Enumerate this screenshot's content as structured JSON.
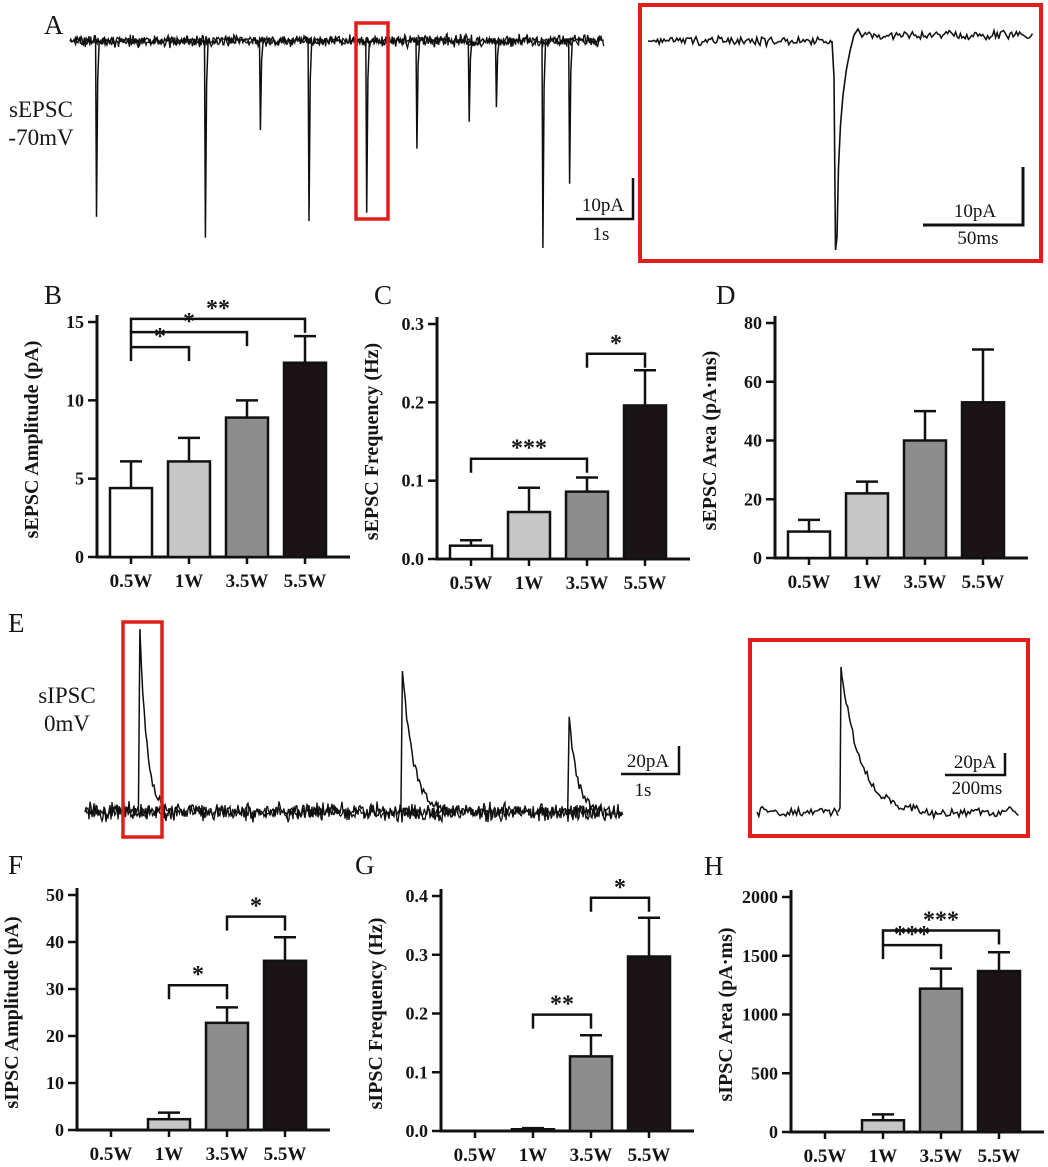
{
  "colors": {
    "trace": "#0f0f0f",
    "highlight_box": "#df1f1a",
    "bar_fills": [
      "#ffffff",
      "#c6c6c6",
      "#8d8d8d",
      "#1a1416"
    ],
    "axis": "#111111"
  },
  "panels": {
    "A": {
      "letter": "A",
      "label_line1": "sEPSC",
      "label_line2": "-70mV",
      "scale": {
        "vertical": "10pA",
        "horizontal": "1s"
      },
      "inset_scale": {
        "vertical": "10pA",
        "horizontal": "50ms"
      },
      "trace_type": "downward-events",
      "events": [
        {
          "x": 0.049,
          "a": 0.85
        },
        {
          "x": 0.253,
          "a": 0.95
        },
        {
          "x": 0.356,
          "a": 0.43
        },
        {
          "x": 0.447,
          "a": 0.87
        },
        {
          "x": 0.555,
          "a": 0.83
        },
        {
          "x": 0.649,
          "a": 0.52
        },
        {
          "x": 0.747,
          "a": 0.39
        },
        {
          "x": 0.798,
          "a": 0.32
        },
        {
          "x": 0.885,
          "a": 1.0
        },
        {
          "x": 0.935,
          "a": 0.69
        }
      ],
      "boxed_event_index": 4,
      "inset_event_x": 0.485
    },
    "E": {
      "letter": "E",
      "label_line1": "sIPSC",
      "label_line2": "0mV",
      "scale": {
        "vertical": "20pA",
        "horizontal": "1s"
      },
      "inset_scale": {
        "vertical": "20pA",
        "horizontal": "200ms"
      },
      "trace_type": "upward-events",
      "events": [
        {
          "x": 0.102,
          "a": 1.0
        },
        {
          "x": 0.59,
          "a": 0.77
        },
        {
          "x": 0.9,
          "a": 0.52
        }
      ],
      "boxed_event_index": 0,
      "inset_event_x": 0.31
    },
    "B": {
      "letter": "B"
    },
    "C": {
      "letter": "C"
    },
    "D": {
      "letter": "D"
    },
    "F": {
      "letter": "F"
    },
    "G": {
      "letter": "G"
    },
    "H": {
      "letter": "H"
    }
  },
  "chart_data": [
    {
      "panel": "B",
      "type": "bar",
      "ylabel": "sEPSC Amplitude (pA)",
      "categories": [
        "0.5W",
        "1W",
        "3.5W",
        "5.5W"
      ],
      "values": [
        4.4,
        6.1,
        8.9,
        12.4
      ],
      "errors": [
        1.7,
        1.5,
        1.1,
        1.7
      ],
      "ylim": [
        0,
        15
      ],
      "yticks": [
        0,
        5,
        10,
        15
      ],
      "ytick_labels": [
        "0",
        "5",
        "10",
        "15"
      ],
      "grid": false,
      "significance": [
        {
          "groups": [
            0,
            1
          ],
          "label": "*",
          "y": 13.4
        },
        {
          "groups": [
            0,
            2
          ],
          "label": "*",
          "y": 14.35
        },
        {
          "groups": [
            0,
            3
          ],
          "label": "**",
          "y": 15.2
        }
      ]
    },
    {
      "panel": "C",
      "type": "bar",
      "ylabel": "sEPSC Frequency (Hz)",
      "categories": [
        "0.5W",
        "1W",
        "3.5W",
        "5.5W"
      ],
      "values": [
        0.017,
        0.06,
        0.086,
        0.196
      ],
      "errors": [
        0.007,
        0.031,
        0.018,
        0.045
      ],
      "ylim": [
        0,
        0.3
      ],
      "yticks": [
        0,
        0.1,
        0.2,
        0.3
      ],
      "ytick_labels": [
        "0.0",
        "0.1",
        "0.2",
        "0.3"
      ],
      "grid": false,
      "significance": [
        {
          "groups": [
            0,
            2
          ],
          "label": "***",
          "y": 0.128
        },
        {
          "groups": [
            2,
            3
          ],
          "label": "*",
          "y": 0.262
        }
      ]
    },
    {
      "panel": "D",
      "type": "bar",
      "ylabel": "sEPSC Area (pA·ms)",
      "categories": [
        "0.5W",
        "1W",
        "3.5W",
        "5.5W"
      ],
      "values": [
        9,
        22,
        40,
        53
      ],
      "errors": [
        4,
        4,
        10,
        18
      ],
      "ylim": [
        0,
        80
      ],
      "yticks": [
        0,
        20,
        40,
        60,
        80
      ],
      "ytick_labels": [
        "0",
        "20",
        "40",
        "60",
        "80"
      ],
      "grid": false,
      "significance": []
    },
    {
      "panel": "F",
      "type": "bar",
      "ylabel": "sIPSC Amplitude (pA)",
      "categories": [
        "0.5W",
        "1W",
        "3.5W",
        "5.5W"
      ],
      "values": [
        0,
        2.3,
        22.8,
        36
      ],
      "errors": [
        0,
        1.4,
        3.3,
        5
      ],
      "ylim": [
        0,
        50
      ],
      "yticks": [
        0,
        10,
        20,
        30,
        40,
        50
      ],
      "ytick_labels": [
        "0",
        "10",
        "20",
        "30",
        "40",
        "50"
      ],
      "grid": false,
      "significance": [
        {
          "groups": [
            1,
            2
          ],
          "label": "*",
          "y": 30.8
        },
        {
          "groups": [
            2,
            3
          ],
          "label": "*",
          "y": 45.4
        }
      ]
    },
    {
      "panel": "G",
      "type": "bar",
      "ylabel": "sIPSC Frequency (Hz)",
      "categories": [
        "0.5W",
        "1W",
        "3.5W",
        "5.5W"
      ],
      "values": [
        0,
        0.003,
        0.127,
        0.297
      ],
      "errors": [
        0,
        0.002,
        0.036,
        0.066
      ],
      "ylim": [
        0,
        0.4
      ],
      "yticks": [
        0,
        0.1,
        0.2,
        0.3,
        0.4
      ],
      "ytick_labels": [
        "0.0",
        "0.1",
        "0.2",
        "0.3",
        "0.4"
      ],
      "grid": false,
      "significance": [
        {
          "groups": [
            1,
            2
          ],
          "label": "**",
          "y": 0.198
        },
        {
          "groups": [
            2,
            3
          ],
          "label": "*",
          "y": 0.397
        }
      ]
    },
    {
      "panel": "H",
      "type": "bar",
      "ylabel": "sIPSC Area (pA·ms)",
      "categories": [
        "0.5W",
        "1W",
        "3.5W",
        "5.5W"
      ],
      "values": [
        0,
        100,
        1220,
        1370
      ],
      "errors": [
        0,
        50,
        170,
        160
      ],
      "ylim": [
        0,
        2000
      ],
      "yticks": [
        0,
        500,
        1000,
        1500,
        2000
      ],
      "ytick_labels": [
        "0",
        "500",
        "1000",
        "1500",
        "2000"
      ],
      "grid": false,
      "significance": [
        {
          "groups": [
            1,
            2
          ],
          "label": "***",
          "y": 1590
        },
        {
          "groups": [
            1,
            3
          ],
          "label": "***",
          "y": 1715
        }
      ]
    }
  ]
}
